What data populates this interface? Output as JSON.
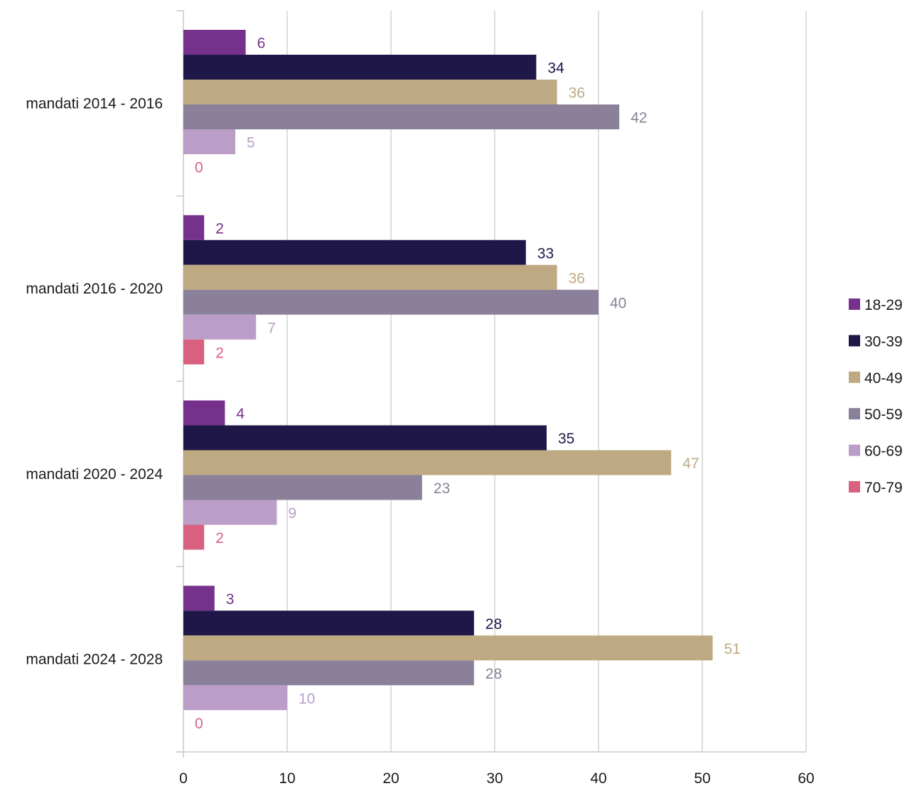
{
  "chart_data": {
    "type": "bar",
    "orientation": "horizontal",
    "title": "",
    "xlabel": "",
    "ylabel": "",
    "xlim": [
      0,
      60
    ],
    "x_ticks": [
      "0",
      "10",
      "20",
      "30",
      "40",
      "50",
      "60"
    ],
    "grid": "vertical",
    "legend_position": "right",
    "categories": [
      "mandati 2014 - 2016",
      "mandati 2016 - 2020",
      "mandati 2020 - 2024",
      "mandati 2024 - 2028"
    ],
    "series": [
      {
        "name": "18-29",
        "color": "#76318c",
        "values": [
          6,
          2,
          4,
          3
        ]
      },
      {
        "name": "30-39",
        "color": "#1f1748",
        "values": [
          34,
          33,
          35,
          28
        ]
      },
      {
        "name": "40-49",
        "color": "#bfa982",
        "values": [
          36,
          36,
          47,
          51
        ]
      },
      {
        "name": "50-59",
        "color": "#8a8099",
        "values": [
          42,
          40,
          23,
          28
        ]
      },
      {
        "name": "60-69",
        "color": "#bb9ec8",
        "values": [
          5,
          7,
          9,
          10
        ]
      },
      {
        "name": "70-79",
        "color": "#d9617f",
        "values": [
          0,
          2,
          2,
          0
        ]
      }
    ]
  }
}
